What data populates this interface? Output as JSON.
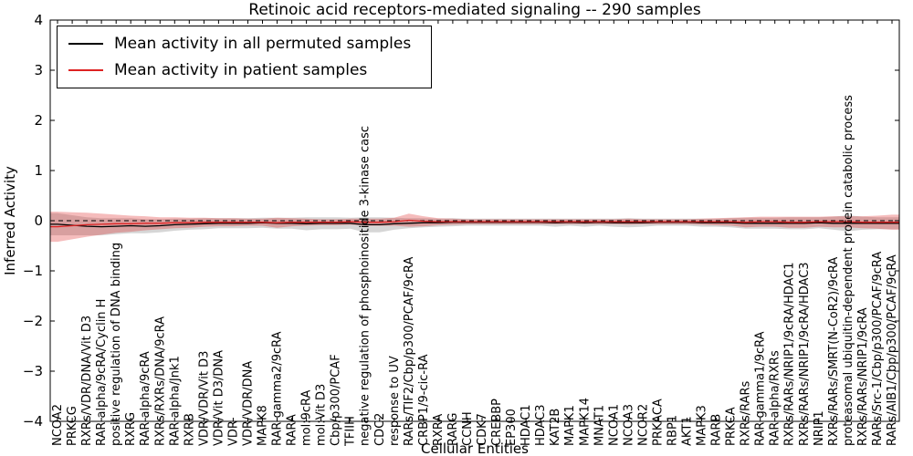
{
  "chart_data": {
    "type": "line",
    "title": "Retinoic acid receptors-mediated signaling -- 290 samples",
    "xlabel": "Cellular Entities",
    "ylabel": "Inferred Activity",
    "ylim": [
      -4,
      4
    ],
    "yticks": [
      -4,
      -3,
      -2,
      -1,
      0,
      1,
      2,
      3,
      4
    ],
    "grid": false,
    "legend_position": "upper left",
    "zero_line": {
      "style": "dashed",
      "color": "#000000"
    },
    "categories": [
      "NCOA2",
      "PRKCG",
      "RXRs/VDR/DNA/Vit D3",
      "RAR alpha/9cRA/Cyclin H",
      "positive regulation of DNA binding",
      "RXRG",
      "RAR alpha/9cRA",
      "RXRs/RXRs/DNA/9cRA",
      "RAR alpha/Jnk1",
      "RXRB",
      "VDR/VDR/Vit D3",
      "VDR/Vit D3/DNA",
      "VDR",
      "VDR/VDR/DNA",
      "MAPK8",
      "RAR gamma2/9cRA",
      "RARA",
      "mol:9cRA",
      "mol:Vit D3",
      "Cbp/p300/PCAF",
      "TFIIH",
      "negative regulation of phosphoinositide 3-kinase casc",
      "CDC2",
      "response to UV",
      "RARs/TIF2/Cbp/p300/PCAF/9cRA",
      "CRBP1/9-cic-RA",
      "RXRA",
      "RARG",
      "CCNH",
      "CDK7",
      "CREBBP",
      "EP300",
      "HDAC1",
      "HDAC3",
      "KAT2B",
      "MAPK1",
      "MAPK14",
      "MNAT1",
      "NCOA1",
      "NCOA3",
      "NCOR2",
      "PRKACA",
      "RBP1",
      "AKT1",
      "MAPK3",
      "RARB",
      "PRKCA",
      "RXRs/RARs",
      "RAR gamma1/9cRA",
      "RAR alpha/RXRs",
      "RXRs/RARs/NRIP1/9cRA/HDAC1",
      "RXRs/RARs/NRIP1/9cRA/HDAC3",
      "NRIP1",
      "RXRs/RARs/SMRT(N-CoR2)/9cRA",
      "proteasomal ubiquitin-dependent protein catabolic process",
      "RXRs/RARs/NRIP1/9cRA",
      "RARs/Src-1/Cbp/p300/PCAF/9cRA",
      "RARs/AIB1/Cbp/p300/PCAF/9cRA"
    ],
    "series": [
      {
        "name": "Mean activity in all permuted samples",
        "color": "#000000",
        "band_color": "#999999",
        "band_opacity": 0.4,
        "values": [
          -0.07,
          -0.09,
          -0.11,
          -0.12,
          -0.11,
          -0.1,
          -0.11,
          -0.1,
          -0.08,
          -0.07,
          -0.06,
          -0.05,
          -0.05,
          -0.05,
          -0.04,
          -0.05,
          -0.05,
          -0.06,
          -0.05,
          -0.05,
          -0.05,
          -0.08,
          -0.08,
          -0.06,
          -0.05,
          -0.04,
          -0.04,
          -0.03,
          -0.03,
          -0.03,
          -0.03,
          -0.03,
          -0.03,
          -0.03,
          -0.04,
          -0.03,
          -0.04,
          -0.03,
          -0.04,
          -0.04,
          -0.04,
          -0.03,
          -0.03,
          -0.03,
          -0.04,
          -0.04,
          -0.04,
          -0.05,
          -0.05,
          -0.05,
          -0.05,
          -0.05,
          -0.04,
          -0.05,
          -0.05,
          -0.05,
          -0.05,
          -0.05
        ],
        "band": [
          0.22,
          0.2,
          0.18,
          0.17,
          0.16,
          0.15,
          0.14,
          0.13,
          0.12,
          0.11,
          0.11,
          0.1,
          0.1,
          0.1,
          0.1,
          0.11,
          0.11,
          0.13,
          0.12,
          0.12,
          0.11,
          0.15,
          0.15,
          0.12,
          0.1,
          0.09,
          0.08,
          0.08,
          0.07,
          0.07,
          0.07,
          0.07,
          0.07,
          0.07,
          0.08,
          0.07,
          0.08,
          0.07,
          0.08,
          0.09,
          0.08,
          0.07,
          0.07,
          0.07,
          0.08,
          0.08,
          0.09,
          0.11,
          0.11,
          0.11,
          0.12,
          0.12,
          0.11,
          0.13,
          0.16,
          0.13,
          0.12,
          0.12
        ]
      },
      {
        "name": "Mean activity in patient samples",
        "color": "#dd2222",
        "band_color": "#dd2222",
        "band_opacity": 0.3,
        "values": [
          -0.12,
          -0.1,
          -0.08,
          -0.07,
          -0.06,
          -0.06,
          -0.05,
          -0.05,
          -0.04,
          -0.04,
          -0.03,
          -0.03,
          -0.03,
          -0.03,
          -0.03,
          -0.04,
          -0.03,
          -0.03,
          -0.03,
          -0.03,
          -0.02,
          -0.03,
          -0.03,
          -0.02,
          0.01,
          -0.01,
          -0.02,
          -0.02,
          -0.02,
          -0.02,
          -0.02,
          -0.02,
          -0.02,
          -0.02,
          -0.02,
          -0.02,
          -0.02,
          -0.02,
          -0.02,
          -0.02,
          -0.02,
          -0.02,
          -0.02,
          -0.02,
          -0.02,
          -0.02,
          -0.02,
          -0.03,
          -0.02,
          -0.02,
          -0.03,
          -0.03,
          -0.02,
          -0.02,
          -0.02,
          -0.03,
          -0.03,
          -0.03
        ],
        "band": [
          0.3,
          0.27,
          0.24,
          0.21,
          0.18,
          0.16,
          0.14,
          0.12,
          0.11,
          0.1,
          0.09,
          0.08,
          0.08,
          0.07,
          0.07,
          0.1,
          0.08,
          0.07,
          0.06,
          0.06,
          0.06,
          0.07,
          0.07,
          0.08,
          0.13,
          0.1,
          0.07,
          0.06,
          0.05,
          0.05,
          0.05,
          0.05,
          0.05,
          0.05,
          0.05,
          0.05,
          0.05,
          0.05,
          0.05,
          0.06,
          0.05,
          0.05,
          0.05,
          0.05,
          0.06,
          0.07,
          0.08,
          0.1,
          0.1,
          0.1,
          0.11,
          0.11,
          0.1,
          0.11,
          0.11,
          0.12,
          0.13,
          0.15
        ]
      }
    ]
  }
}
